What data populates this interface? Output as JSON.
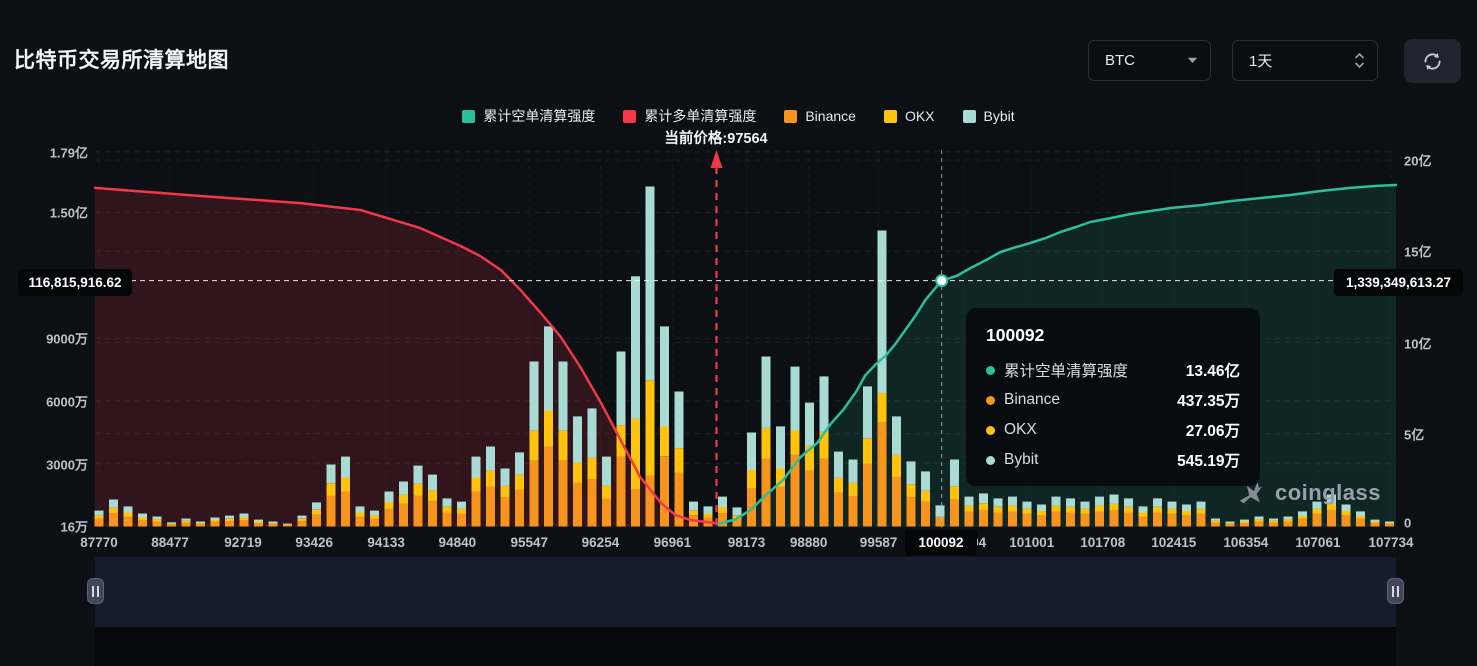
{
  "header": {
    "title": "比特币交易所清算地图"
  },
  "controls": {
    "symbol": {
      "value": "BTC"
    },
    "interval": {
      "value": "1天"
    },
    "refresh_icon": "refresh-circular-arrows"
  },
  "legend": [
    {
      "label": "累计空单清算强度",
      "color": "#2CBE9D"
    },
    {
      "label": "累计多单清算强度",
      "color": "#F3384A"
    },
    {
      "label": "Binance",
      "color": "#F7941D"
    },
    {
      "label": "OKX",
      "color": "#FFC30D"
    },
    {
      "label": "Bybit",
      "color": "#A9DBD4"
    }
  ],
  "current_price_label": "当前价格:97564",
  "crosshair_labels": {
    "left": "116,815,916.62",
    "right": "1,339,349,613.27",
    "x": "100092"
  },
  "tooltip": {
    "title": "100092",
    "rows": [
      {
        "label": "累计空单清算强度",
        "value": "13.46亿",
        "color": "#2CBE9D"
      },
      {
        "label": "Binance",
        "value": "437.35万",
        "color": "#F7941D"
      },
      {
        "label": "OKX",
        "value": "27.06万",
        "color": "#FFC30D"
      },
      {
        "label": "Bybit",
        "value": "545.19万",
        "color": "#A9DBD4"
      }
    ]
  },
  "watermark": {
    "text": "coinglass"
  },
  "chart_data": {
    "type": "mixed",
    "title": "比特币交易所清算地图",
    "series_types": {
      "bars": "stacked-bar",
      "lines": "line-area"
    },
    "colors": {
      "short_line": "#2CBE9D",
      "short_fill": "rgba(44,190,157,0.13)",
      "long_line": "#F3384A",
      "long_fill": "rgba(243,56,74,0.16)",
      "binance": "#F7941D",
      "okx": "#FFC30D",
      "bybit": "#A9DBD4",
      "grid": "rgba(255,255,255,0.07)",
      "vgrid": "rgba(255,255,255,0.045)"
    },
    "left_axis": {
      "unit": "万",
      "ticks": [
        {
          "label": "1.79亿",
          "wan": 17900
        },
        {
          "label": "1.50亿",
          "wan": 15000
        },
        {
          "label": "9000万",
          "wan": 9000
        },
        {
          "label": "6000万",
          "wan": 6000
        },
        {
          "label": "3000万",
          "wan": 3000
        },
        {
          "label": "16万",
          "wan": 16
        }
      ]
    },
    "right_axis": {
      "unit": "亿",
      "ticks": [
        {
          "label": "20亿",
          "yi": 20
        },
        {
          "label": "15亿",
          "yi": 15
        },
        {
          "label": "10亿",
          "yi": 10
        },
        {
          "label": "5亿",
          "yi": 5
        },
        {
          "label": "0",
          "yi": 0
        }
      ]
    },
    "x_ticks": [
      {
        "label": "87770",
        "pos": 0.0031
      },
      {
        "label": "88477",
        "pos": 0.0577
      },
      {
        "label": "92719",
        "pos": 0.1138
      },
      {
        "label": "93426",
        "pos": 0.1685
      },
      {
        "label": "94133",
        "pos": 0.2238
      },
      {
        "label": "94840",
        "pos": 0.2785
      },
      {
        "label": "95547",
        "pos": 0.3338
      },
      {
        "label": "96254",
        "pos": 0.3885
      },
      {
        "label": "96961",
        "pos": 0.4438
      },
      {
        "label": "98173",
        "pos": 0.5008
      },
      {
        "label": "98880",
        "pos": 0.5485
      },
      {
        "label": "99587",
        "pos": 0.6023
      },
      {
        "label": "100294",
        "pos": 0.6677
      },
      {
        "label": "101001",
        "pos": 0.72
      },
      {
        "label": "101708",
        "pos": 0.7746
      },
      {
        "label": "102415",
        "pos": 0.8292
      },
      {
        "label": "106354",
        "pos": 0.8846
      },
      {
        "label": "107061",
        "pos": 0.94
      },
      {
        "label": "107734",
        "pos": 0.9962
      }
    ],
    "bars": {
      "series": [
        "Binance",
        "OKX",
        "Bybit"
      ],
      "unit": "万",
      "stacks_wan": [
        [
          380,
          150,
          230
        ],
        [
          640,
          260,
          390
        ],
        [
          480,
          190,
          290
        ],
        [
          310,
          120,
          190
        ],
        [
          240,
          100,
          140
        ],
        [
          100,
          40,
          60
        ],
        [
          190,
          80,
          110
        ],
        [
          120,
          50,
          70
        ],
        [
          220,
          90,
          120
        ],
        [
          260,
          110,
          150
        ],
        [
          310,
          120,
          190
        ],
        [
          170,
          70,
          90
        ],
        [
          120,
          50,
          70
        ],
        [
          70,
          30,
          40
        ],
        [
          260,
          110,
          150
        ],
        [
          570,
          230,
          350
        ],
        [
          1480,
          590,
          890
        ],
        [
          1670,
          670,
          1000
        ],
        [
          480,
          190,
          290
        ],
        [
          380,
          150,
          230
        ],
        [
          840,
          330,
          500
        ],
        [
          1080,
          430,
          640
        ],
        [
          1460,
          580,
          870
        ],
        [
          1240,
          500,
          740
        ],
        [
          670,
          270,
          400
        ],
        [
          600,
          240,
          350
        ],
        [
          1670,
          670,
          1000
        ],
        [
          1910,
          760,
          1150
        ],
        [
          1390,
          550,
          830
        ],
        [
          1770,
          710,
          1060
        ],
        [
          3150,
          1420,
          3310
        ],
        [
          3820,
          1720,
          4020
        ],
        [
          3150,
          1420,
          3310
        ],
        [
          2100,
          950,
          2210
        ],
        [
          2260,
          1020,
          2360
        ],
        [
          1340,
          600,
          1400
        ],
        [
          3340,
          1500,
          3520
        ],
        [
          1790,
          3350,
          6810
        ],
        [
          2440,
          4550,
          9250
        ],
        [
          3350,
          1430,
          4780
        ],
        [
          2580,
          1160,
          2710
        ],
        [
          540,
          240,
          410
        ],
        [
          430,
          190,
          340
        ],
        [
          640,
          290,
          500
        ],
        [
          360,
          180,
          370
        ],
        [
          1800,
          900,
          1790
        ],
        [
          3250,
          1460,
          3410
        ],
        [
          1910,
          860,
          2010
        ],
        [
          3440,
          1150,
          3050
        ],
        [
          2670,
          1180,
          2070
        ],
        [
          3230,
          1290,
          2650
        ],
        [
          1610,
          720,
          1250
        ],
        [
          1440,
          640,
          1120
        ],
        [
          3010,
          1200,
          2480
        ],
        [
          4950,
          1420,
          7770
        ],
        [
          2370,
          1050,
          1840
        ],
        [
          1400,
          620,
          1090
        ],
        [
          1180,
          530,
          920
        ],
        [
          437.35,
          27.06,
          545.19
        ],
        [
          1280,
          640,
          1280
        ],
        [
          720,
          280,
          430
        ],
        [
          790,
          320,
          470
        ],
        [
          670,
          270,
          400
        ],
        [
          720,
          280,
          430
        ],
        [
          600,
          240,
          350
        ],
        [
          530,
          210,
          310
        ],
        [
          720,
          280,
          430
        ],
        [
          670,
          270,
          400
        ],
        [
          600,
          240,
          350
        ],
        [
          720,
          280,
          430
        ],
        [
          770,
          310,
          450
        ],
        [
          670,
          270,
          400
        ],
        [
          480,
          190,
          290
        ],
        [
          670,
          270,
          400
        ],
        [
          600,
          240,
          350
        ],
        [
          530,
          210,
          310
        ],
        [
          600,
          240,
          350
        ],
        [
          190,
          80,
          110
        ],
        [
          120,
          50,
          70
        ],
        [
          170,
          70,
          90
        ],
        [
          240,
          100,
          140
        ],
        [
          190,
          80,
          110
        ],
        [
          240,
          100,
          140
        ],
        [
          360,
          140,
          220
        ],
        [
          600,
          240,
          350
        ],
        [
          770,
          310,
          450
        ],
        [
          530,
          210,
          310
        ],
        [
          360,
          140,
          220
        ],
        [
          170,
          70,
          90
        ],
        [
          120,
          50,
          70
        ]
      ]
    },
    "lines": {
      "long_cum": {
        "name": "累计多单清算强度",
        "unit": "亿",
        "points": [
          [
            0.0,
            18.47
          ],
          [
            0.081,
            18.03
          ],
          [
            0.158,
            17.64
          ],
          [
            0.204,
            17.26
          ],
          [
            0.25,
            16.27
          ],
          [
            0.281,
            15.29
          ],
          [
            0.296,
            14.74
          ],
          [
            0.312,
            13.97
          ],
          [
            0.327,
            12.88
          ],
          [
            0.342,
            11.67
          ],
          [
            0.358,
            10.3
          ],
          [
            0.373,
            8.66
          ],
          [
            0.389,
            6.68
          ],
          [
            0.404,
            4.66
          ],
          [
            0.419,
            2.63
          ],
          [
            0.435,
            1.21
          ],
          [
            0.446,
            0.55
          ],
          [
            0.458,
            0.27
          ],
          [
            0.4785,
            0.1
          ]
        ]
      },
      "short_cum": {
        "name": "累计空单清算强度",
        "unit": "亿",
        "points": [
          [
            0.4785,
            0.05
          ],
          [
            0.492,
            0.3
          ],
          [
            0.504,
            0.82
          ],
          [
            0.515,
            1.6
          ],
          [
            0.529,
            2.47
          ],
          [
            0.542,
            3.7
          ],
          [
            0.555,
            4.49
          ],
          [
            0.565,
            5.5
          ],
          [
            0.575,
            6.3
          ],
          [
            0.585,
            7.3
          ],
          [
            0.592,
            8.2
          ],
          [
            0.6,
            8.8
          ],
          [
            0.608,
            9.3
          ],
          [
            0.615,
            9.9
          ],
          [
            0.623,
            10.7
          ],
          [
            0.631,
            11.5
          ],
          [
            0.638,
            12.3
          ],
          [
            0.645,
            12.9
          ],
          [
            0.6508,
            13.39
          ],
          [
            0.662,
            13.64
          ],
          [
            0.673,
            14.08
          ],
          [
            0.685,
            14.52
          ],
          [
            0.696,
            14.96
          ],
          [
            0.708,
            15.23
          ],
          [
            0.719,
            15.45
          ],
          [
            0.731,
            15.73
          ],
          [
            0.742,
            16.05
          ],
          [
            0.754,
            16.33
          ],
          [
            0.765,
            16.6
          ],
          [
            0.781,
            16.82
          ],
          [
            0.796,
            17.04
          ],
          [
            0.812,
            17.21
          ],
          [
            0.827,
            17.37
          ],
          [
            0.85,
            17.53
          ],
          [
            0.873,
            17.75
          ],
          [
            0.896,
            17.92
          ],
          [
            0.919,
            18.08
          ],
          [
            0.942,
            18.3
          ],
          [
            0.965,
            18.47
          ],
          [
            0.985,
            18.58
          ],
          [
            1.0,
            18.63
          ]
        ]
      }
    },
    "current_price": {
      "price": 97564,
      "x_pos": 0.4777
    },
    "crosshair": {
      "x_value": "100092",
      "x_pos": 0.6508,
      "y_yi": 13.39,
      "y_left_wan": 11681.59
    }
  }
}
